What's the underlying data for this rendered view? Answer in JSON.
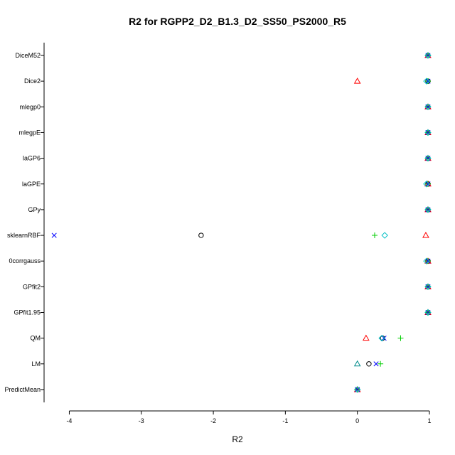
{
  "chart_data": {
    "type": "scatter",
    "title": "R2 for RGPP2_D2_B1.3_D2_SS50_PS2000_R5",
    "xlabel": "R2",
    "ylabel": "",
    "xlim": [
      -4.35,
      1.0
    ],
    "x_ticks": [
      -4,
      -3,
      -2,
      -1,
      0,
      1
    ],
    "categories": [
      "DiceM52",
      "Dice2",
      "mlegp0",
      "mlegpE",
      "laGP6",
      "laGPE",
      "GPy",
      "sklearnRBF",
      "GPfit0corrgauss",
      "GPfit2",
      "GPfit1.95",
      "QM",
      "LM",
      "PredictMean"
    ],
    "category_tick_labels": [
      "DiceM52",
      "Dice2",
      "mlegp0",
      "mlegpE",
      "laGP6",
      "laGPE",
      "GPy",
      "sklearnRBF",
      "0corrgauss",
      "GPfit2",
      "GPfit1.95",
      "QM",
      "LM",
      "PredictMean"
    ],
    "grid": false,
    "legend": "none",
    "series": [
      {
        "marker": "circle",
        "color": "#000000",
        "values": [
          0.98,
          0.98,
          0.98,
          0.98,
          0.98,
          0.98,
          0.98,
          -2.17,
          0.98,
          0.98,
          0.98,
          0.35,
          0.16,
          0.0
        ]
      },
      {
        "marker": "triangle",
        "color": "#ff0000",
        "values": [
          0.98,
          0.0,
          0.98,
          0.98,
          0.98,
          0.98,
          0.98,
          0.95,
          0.98,
          0.98,
          0.98,
          0.12,
          null,
          0.0
        ]
      },
      {
        "marker": "plus",
        "color": "#00cd00",
        "values": [
          0.98,
          0.98,
          0.98,
          0.98,
          0.98,
          0.98,
          0.98,
          0.24,
          0.98,
          0.98,
          0.98,
          0.6,
          0.32,
          0.0
        ]
      },
      {
        "marker": "cross",
        "color": "#0000ff",
        "values": [
          0.98,
          0.98,
          0.98,
          0.98,
          0.98,
          0.98,
          0.98,
          -4.21,
          0.98,
          0.98,
          0.98,
          0.37,
          0.26,
          0.0
        ]
      },
      {
        "marker": "diamond",
        "color": "#00bfc4",
        "values": [
          0.98,
          0.96,
          0.98,
          0.98,
          0.98,
          0.96,
          0.98,
          0.38,
          0.96,
          0.98,
          0.98,
          0.34,
          null,
          0.0
        ]
      },
      {
        "marker": "triangle",
        "color": "#008b8b",
        "values": [
          null,
          null,
          null,
          null,
          null,
          null,
          null,
          null,
          null,
          null,
          null,
          null,
          0.0,
          null
        ]
      }
    ]
  }
}
